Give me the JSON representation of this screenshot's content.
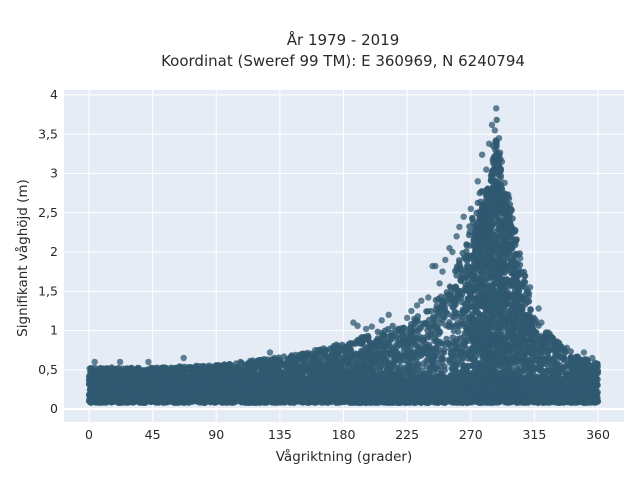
{
  "chart_data": {
    "type": "scatter",
    "title_lines": [
      "År 1979 - 2019",
      "Koordinat (Sweref 99 TM): E 360969, N 6240794"
    ],
    "xlabel": "Vågriktning (grader)",
    "ylabel": "Signifikant våghöjd (m)",
    "xlim": [
      -17,
      368
    ],
    "ylim": [
      -0.14,
      4.05
    ],
    "x_ticks": [
      0,
      45,
      90,
      135,
      180,
      225,
      270,
      315,
      360
    ],
    "x_tick_labels": [
      "0",
      "45",
      "90",
      "135",
      "180",
      "225",
      "270",
      "315",
      "360"
    ],
    "y_ticks": [
      0,
      0.5,
      1,
      1.5,
      2,
      2.5,
      3,
      3.5,
      4
    ],
    "y_tick_labels": [
      "0",
      "0,5",
      "1",
      "1,5",
      "2",
      "2,5",
      "3",
      "3,5",
      "4"
    ],
    "grid": true,
    "legend": "none",
    "marker_color": "#2f5970",
    "max_height_envelope": {
      "direction": [
        0,
        20,
        45,
        90,
        135,
        180,
        210,
        225,
        240,
        250,
        260,
        270,
        275,
        280,
        285,
        288,
        292,
        295,
        300,
        305,
        310,
        315,
        330,
        345,
        360
      ],
      "max_height": [
        0.55,
        0.55,
        0.55,
        0.58,
        0.68,
        0.85,
        1.05,
        1.15,
        1.3,
        1.5,
        1.85,
        2.4,
        2.75,
        2.95,
        3.3,
        3.8,
        3.2,
        2.9,
        2.5,
        2.0,
        1.6,
        1.2,
        0.9,
        0.7,
        0.6
      ]
    },
    "outlier_points": [
      {
        "x": 288,
        "y": 3.83
      },
      {
        "x": 285,
        "y": 3.62
      },
      {
        "x": 287,
        "y": 3.55
      },
      {
        "x": 290,
        "y": 3.45
      },
      {
        "x": 283,
        "y": 3.38
      },
      {
        "x": 278,
        "y": 3.24
      },
      {
        "x": 292,
        "y": 3.15
      },
      {
        "x": 281,
        "y": 3.05
      },
      {
        "x": 275,
        "y": 2.9
      },
      {
        "x": 294,
        "y": 2.88
      },
      {
        "x": 296,
        "y": 2.7
      },
      {
        "x": 270,
        "y": 2.55
      },
      {
        "x": 265,
        "y": 2.45
      },
      {
        "x": 298,
        "y": 2.5
      },
      {
        "x": 262,
        "y": 2.32
      },
      {
        "x": 260,
        "y": 2.2
      },
      {
        "x": 300,
        "y": 2.25
      },
      {
        "x": 255,
        "y": 2.05
      },
      {
        "x": 257,
        "y": 2.0
      },
      {
        "x": 252,
        "y": 1.9
      },
      {
        "x": 245,
        "y": 1.82
      },
      {
        "x": 243,
        "y": 1.82
      },
      {
        "x": 250,
        "y": 1.75
      },
      {
        "x": 305,
        "y": 1.92
      },
      {
        "x": 308,
        "y": 1.7
      },
      {
        "x": 312,
        "y": 1.55
      },
      {
        "x": 248,
        "y": 1.6
      },
      {
        "x": 240,
        "y": 1.42
      },
      {
        "x": 235,
        "y": 1.38
      },
      {
        "x": 232,
        "y": 1.32
      },
      {
        "x": 318,
        "y": 1.28
      },
      {
        "x": 320,
        "y": 1.1
      },
      {
        "x": 228,
        "y": 1.25
      },
      {
        "x": 225,
        "y": 1.16
      },
      {
        "x": 212,
        "y": 1.2
      },
      {
        "x": 207,
        "y": 1.13
      },
      {
        "x": 187,
        "y": 1.1
      },
      {
        "x": 190,
        "y": 1.06
      },
      {
        "x": 196,
        "y": 1.02
      },
      {
        "x": 200,
        "y": 1.05
      },
      {
        "x": 326,
        "y": 0.95
      },
      {
        "x": 330,
        "y": 0.85
      },
      {
        "x": 338,
        "y": 0.78
      },
      {
        "x": 350,
        "y": 0.72
      },
      {
        "x": 356,
        "y": 0.65
      },
      {
        "x": 67,
        "y": 0.65
      },
      {
        "x": 42,
        "y": 0.6
      },
      {
        "x": 22,
        "y": 0.6
      },
      {
        "x": 4,
        "y": 0.6
      },
      {
        "x": 128,
        "y": 0.72
      },
      {
        "x": 160,
        "y": 0.75
      },
      {
        "x": 175,
        "y": 0.82
      }
    ]
  }
}
